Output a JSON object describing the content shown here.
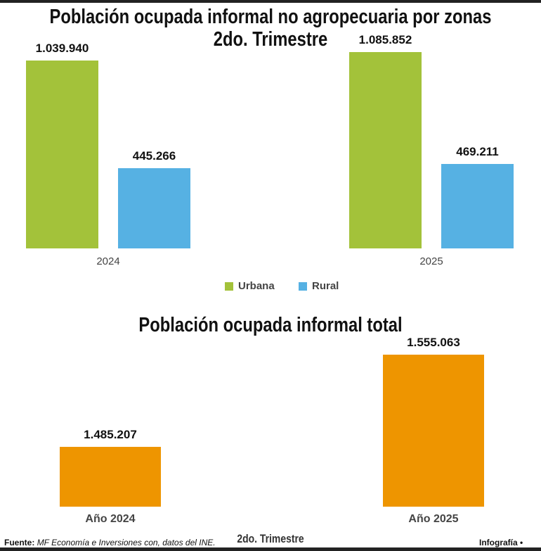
{
  "chart_data": [
    {
      "type": "bar",
      "title": "Población ocupada informal no agropecuaria por zonas",
      "subtitle": "2do. Trimestre",
      "categories": [
        "2024",
        "2025"
      ],
      "series": [
        {
          "name": "Urbana",
          "color": "#a3c23a",
          "values": [
            1039940,
            1085852
          ],
          "labels": [
            "1.039.940",
            "1.085.852"
          ]
        },
        {
          "name": "Rural",
          "color": "#56b1e3",
          "values": [
            445266,
            469211
          ],
          "labels": [
            "445.266",
            "469.211"
          ]
        }
      ],
      "ylim": [
        0,
        1100000
      ],
      "grid": false,
      "legend": "bottom"
    },
    {
      "type": "bar",
      "title": "Población ocupada informal total",
      "xlabel": "2do. Trimestre",
      "categories": [
        "Año 2024",
        "Año 2025"
      ],
      "series": [
        {
          "color": "#ee9500",
          "values": [
            1485207,
            1555063
          ],
          "labels": [
            "1.485.207",
            "1.555.063"
          ]
        }
      ],
      "ylim": [
        1440000,
        1560000
      ],
      "grid": false
    }
  ],
  "footer": {
    "source_label": "Fuente:",
    "source_text": "MF Economía e Inversiones con, datos del INE.",
    "credit": "Infografía •",
    "logo": "abc"
  }
}
